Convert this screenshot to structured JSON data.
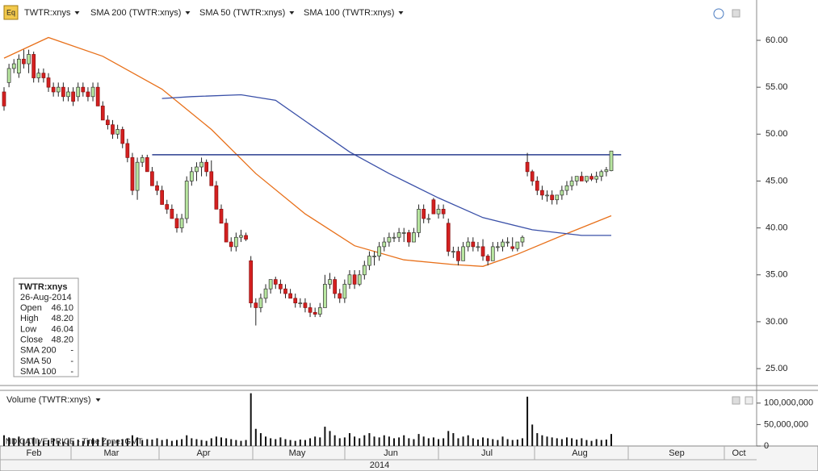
{
  "toolbar": {
    "icon": "Eq"
  },
  "chart_data": [
    {
      "type": "candlestick",
      "series": [
        {
          "name": "TWTR:xnys",
          "color": "#000000"
        },
        {
          "name": "SMA 200 (TWTR:xnys)",
          "color": "#cc1111"
        },
        {
          "name": "SMA 50 (TWTR:xnys)",
          "color": "#e8701a",
          "x": [
            0,
            9,
            20,
            32,
            42,
            51,
            61,
            71,
            81,
            91,
            97,
            104,
            114,
            123
          ],
          "values": [
            58.1,
            60.3,
            58.3,
            54.8,
            50.5,
            45.8,
            41.5,
            38.1,
            36.6,
            36.1,
            35.9,
            37.2,
            39.4,
            41.3
          ]
        },
        {
          "name": "SMA 100 (TWTR:xnys)",
          "color": "#3a50a8",
          "x": [
            32,
            38,
            48,
            55,
            61,
            70,
            78,
            88,
            97,
            107,
            117,
            123
          ],
          "values": [
            53.8,
            54,
            54.2,
            53.6,
            51.4,
            48.1,
            45.8,
            43.2,
            41.1,
            39.8,
            39.2,
            39.2
          ]
        }
      ],
      "up_color": "#b8e6a0",
      "down_color": "#d42020",
      "candles": [
        [
          54.5,
          55,
          52.5,
          53
        ],
        [
          55.5,
          57.5,
          55,
          57
        ],
        [
          57,
          58,
          56.5,
          57.5
        ],
        [
          56.5,
          58.5,
          56,
          58
        ],
        [
          58,
          59,
          57,
          57.5
        ],
        [
          57.5,
          59,
          56.5,
          58.5
        ],
        [
          58.5,
          58.8,
          55.5,
          56
        ],
        [
          56,
          57,
          55.5,
          56.5
        ],
        [
          56.5,
          57,
          55.5,
          56
        ],
        [
          56,
          56.5,
          54.5,
          55
        ],
        [
          55,
          55.5,
          54,
          54.5
        ],
        [
          54.5,
          55.5,
          54,
          55
        ],
        [
          55,
          55.5,
          53.5,
          54
        ],
        [
          54,
          55,
          53.5,
          54.5
        ],
        [
          54.5,
          55,
          53,
          53.5
        ],
        [
          54,
          55.5,
          53.5,
          55
        ],
        [
          55,
          55.5,
          54,
          54.5
        ],
        [
          54.5,
          55,
          53.5,
          54
        ],
        [
          54,
          55.5,
          53.5,
          55
        ],
        [
          55,
          55.5,
          53,
          53
        ],
        [
          53,
          53.5,
          51.5,
          51.5
        ],
        [
          51.5,
          52,
          50.5,
          51
        ],
        [
          51,
          51.5,
          49.5,
          50
        ],
        [
          50,
          51,
          49.5,
          50.5
        ],
        [
          50.5,
          50.8,
          48.5,
          49
        ],
        [
          49,
          49.5,
          47,
          47.5
        ],
        [
          47.5,
          48,
          43.5,
          44
        ],
        [
          44,
          47.5,
          43,
          47
        ],
        [
          47,
          47.8,
          46.5,
          47.5
        ],
        [
          47.5,
          47.8,
          46,
          46
        ],
        [
          46,
          46.5,
          44.5,
          44.5
        ],
        [
          44.5,
          45,
          43.5,
          44
        ],
        [
          44,
          44.5,
          42.5,
          42.5
        ],
        [
          42.5,
          43,
          41.5,
          42
        ],
        [
          42,
          42.5,
          41,
          41
        ],
        [
          41,
          41.5,
          39.5,
          40
        ],
        [
          40,
          41.5,
          39.5,
          41
        ],
        [
          41,
          45.5,
          40.5,
          45
        ],
        [
          45,
          46.5,
          44.5,
          46
        ],
        [
          46,
          47,
          45,
          46.5
        ],
        [
          46.5,
          47.5,
          45.5,
          47
        ],
        [
          47,
          47.3,
          45.5,
          46
        ],
        [
          46,
          47.2,
          44.5,
          44.5
        ],
        [
          44.5,
          45,
          42,
          42
        ],
        [
          42,
          42.5,
          40.5,
          40.5
        ],
        [
          40.5,
          41,
          38.5,
          38.5
        ],
        [
          38.5,
          39,
          37.5,
          38
        ],
        [
          38,
          39.5,
          37.5,
          39
        ],
        [
          39,
          39.8,
          38.5,
          39.2
        ],
        [
          39.2,
          39.5,
          38.6,
          38.8
        ],
        [
          36.5,
          37,
          31.5,
          32
        ],
        [
          32,
          32.5,
          29.6,
          31.5
        ],
        [
          31.5,
          33,
          31,
          32.5
        ],
        [
          32.5,
          34,
          32,
          33.5
        ],
        [
          33.5,
          34.5,
          33,
          34.5
        ],
        [
          34.5,
          34.8,
          33.5,
          34
        ],
        [
          34,
          34.5,
          33,
          33.5
        ],
        [
          33.5,
          34,
          32.5,
          33
        ],
        [
          33,
          33.5,
          32.5,
          32.5
        ],
        [
          32.5,
          33,
          31.5,
          32
        ],
        [
          32,
          32.5,
          31.5,
          32
        ],
        [
          32,
          32.5,
          31,
          31.5
        ],
        [
          31.5,
          32,
          30.5,
          31
        ],
        [
          31,
          31.5,
          30.5,
          30.8
        ],
        [
          30.8,
          32,
          30.5,
          31.5
        ],
        [
          31.5,
          35,
          31.5,
          34
        ],
        [
          34,
          35.2,
          33.5,
          34.5
        ],
        [
          34.5,
          34.8,
          32.5,
          33
        ],
        [
          33,
          33.5,
          32,
          32.5
        ],
        [
          32.5,
          34.5,
          32,
          34
        ],
        [
          34,
          35.5,
          33.5,
          35
        ],
        [
          35,
          35.5,
          33.5,
          34
        ],
        [
          34,
          35.5,
          33.8,
          35
        ],
        [
          35,
          36.5,
          34.5,
          36
        ],
        [
          36,
          37.5,
          35.5,
          37
        ],
        [
          37,
          37.5,
          36,
          37
        ],
        [
          37,
          38.5,
          36.5,
          38
        ],
        [
          38,
          39,
          37.5,
          38.5
        ],
        [
          38.5,
          39.5,
          38,
          39
        ],
        [
          39,
          39.5,
          38.5,
          39
        ],
        [
          39,
          40,
          38.5,
          39.5
        ],
        [
          39.5,
          40,
          38.5,
          39.5
        ],
        [
          39.5,
          39.8,
          38,
          38.5
        ],
        [
          38.5,
          40,
          38.5,
          39.5
        ],
        [
          39.5,
          42.5,
          39,
          42
        ],
        [
          42,
          42.5,
          40.5,
          41
        ],
        [
          41,
          41.5,
          40.5,
          41
        ],
        [
          43,
          43.2,
          41.5,
          41.5
        ],
        [
          41.5,
          42.5,
          41,
          42
        ],
        [
          42,
          42.5,
          41,
          41.5
        ],
        [
          40.5,
          41,
          37,
          37.5
        ],
        [
          37.5,
          38,
          36.8,
          37.5
        ],
        [
          37.5,
          38,
          36,
          36.5
        ],
        [
          36.5,
          38.5,
          36.5,
          38
        ],
        [
          38,
          39,
          37.5,
          38.5
        ],
        [
          38.5,
          39,
          37.5,
          38
        ],
        [
          38,
          38.5,
          37.5,
          38
        ],
        [
          38,
          38.8,
          36.5,
          37
        ],
        [
          37,
          37.2,
          36,
          36.5
        ],
        [
          36.5,
          38.5,
          36.5,
          38
        ],
        [
          38,
          38.5,
          37.5,
          38
        ],
        [
          38,
          38.8,
          37.5,
          38.5
        ],
        [
          38.5,
          39,
          38,
          38.5
        ],
        [
          38,
          39,
          37.5,
          37.8
        ],
        [
          37.8,
          38.5,
          37.5,
          38.5
        ],
        [
          38.5,
          39.2,
          38,
          39
        ],
        [
          47,
          48,
          45.5,
          46
        ],
        [
          46,
          46.2,
          44.5,
          45
        ],
        [
          45,
          45.5,
          43.5,
          44
        ],
        [
          44,
          44.5,
          43,
          43.5
        ],
        [
          43.5,
          44,
          42.8,
          43.5
        ],
        [
          43.5,
          44,
          42.5,
          43
        ],
        [
          43,
          43.5,
          42.5,
          43.5
        ],
        [
          43.5,
          44.5,
          43,
          44
        ],
        [
          44,
          45,
          43.5,
          44.5
        ],
        [
          44.5,
          45.5,
          44,
          45
        ],
        [
          45,
          45.5,
          44.5,
          45.5
        ],
        [
          45.5,
          46,
          45,
          45
        ],
        [
          45,
          45.5,
          44.8,
          45.5
        ],
        [
          45.5,
          45.8,
          45,
          45.2
        ],
        [
          45.2,
          46,
          44.8,
          45.5
        ],
        [
          45.5,
          46.2,
          45,
          46
        ],
        [
          46,
          46.5,
          45.5,
          46.2
        ],
        [
          46.1,
          48.2,
          46.04,
          48.2
        ]
      ],
      "hline": {
        "value": 47.8,
        "x": [
          30,
          125
        ],
        "color": "#2a3d8f"
      },
      "ylim": [
        23.2,
        64.3
      ],
      "yticks": [
        {
          "value": 25,
          "label": "25.00"
        },
        {
          "value": 30,
          "label": "30.00"
        },
        {
          "value": 35,
          "label": "35.00"
        },
        {
          "value": 40,
          "label": "40.00"
        },
        {
          "value": 45,
          "label": "45.00"
        },
        {
          "value": 50,
          "label": "50.00"
        },
        {
          "value": 55,
          "label": "55.00"
        },
        {
          "value": 60,
          "label": "60.00"
        }
      ],
      "info_box": {
        "title": "TWTR:xnys",
        "date": "26-Aug-2014",
        "rows": [
          {
            "label": "Open",
            "value": "46.10"
          },
          {
            "label": "High",
            "value": "48.20"
          },
          {
            "label": "Low",
            "value": "46.04"
          },
          {
            "label": "Close",
            "value": "48.20"
          },
          {
            "label": "SMA 200",
            "value": "-"
          },
          {
            "label": "SMA 50",
            "value": "-"
          },
          {
            "label": "SMA 100",
            "value": "-"
          }
        ]
      }
    },
    {
      "type": "bar",
      "title": "Volume (TWTR:xnys)",
      "color": "#111111",
      "values": [
        25000000.0,
        20000000.0,
        18000000.0,
        22000000.0,
        15000000.0,
        18000000.0,
        20000000.0,
        15000000.0,
        12000000.0,
        14000000.0,
        18000000.0,
        12000000.0,
        10000000.0,
        14000000.0,
        12000000.0,
        15000000.0,
        12000000.0,
        14000000.0,
        18000000.0,
        16000000.0,
        20000000.0,
        14000000.0,
        12000000.0,
        15000000.0,
        16000000.0,
        18000000.0,
        25000000.0,
        20000000.0,
        14000000.0,
        16000000.0,
        15000000.0,
        18000000.0,
        14000000.0,
        16000000.0,
        12000000.0,
        14000000.0,
        16000000.0,
        25000000.0,
        18000000.0,
        16000000.0,
        14000000.0,
        12000000.0,
        18000000.0,
        22000000.0,
        20000000.0,
        18000000.0,
        16000000.0,
        14000000.0,
        12000000.0,
        14000000.0,
        123000000.0,
        40000000.0,
        30000000.0,
        22000000.0,
        18000000.0,
        16000000.0,
        20000000.0,
        16000000.0,
        14000000.0,
        12000000.0,
        15000000.0,
        14000000.0,
        18000000.0,
        22000000.0,
        20000000.0,
        45000000.0,
        35000000.0,
        25000000.0,
        18000000.0,
        20000000.0,
        30000000.0,
        22000000.0,
        18000000.0,
        25000000.0,
        30000000.0,
        22000000.0,
        20000000.0,
        25000000.0,
        22000000.0,
        18000000.0,
        20000000.0,
        25000000.0,
        18000000.0,
        16000000.0,
        28000000.0,
        22000000.0,
        18000000.0,
        20000000.0,
        16000000.0,
        18000000.0,
        35000000.0,
        30000000.0,
        18000000.0,
        22000000.0,
        25000000.0,
        18000000.0,
        15000000.0,
        20000000.0,
        18000000.0,
        16000000.0,
        14000000.0,
        22000000.0,
        16000000.0,
        14000000.0,
        15000000.0,
        18000000.0,
        115000000.0,
        50000000.0,
        30000000.0,
        25000000.0,
        22000000.0,
        20000000.0,
        18000000.0,
        16000000.0,
        20000000.0,
        18000000.0,
        15000000.0,
        18000000.0,
        14000000.0,
        12000000.0,
        16000000.0,
        14000000.0,
        15000000.0,
        28000000.0
      ],
      "ylim": [
        0,
        126000000
      ],
      "yticks": [
        0,
        {
          "value": 50000000,
          "label": "50,000,000"
        },
        {
          "value": 100000000,
          "label": "100,000,000"
        }
      ],
      "note": "INDICATIVE PRICE - Time Zone: GMT"
    }
  ],
  "x_axis": {
    "months": [
      "Feb",
      "Mar",
      "Apr",
      "May",
      "Jun",
      "Jul",
      "Aug",
      "Sep",
      "Oct"
    ],
    "year": "2014"
  }
}
